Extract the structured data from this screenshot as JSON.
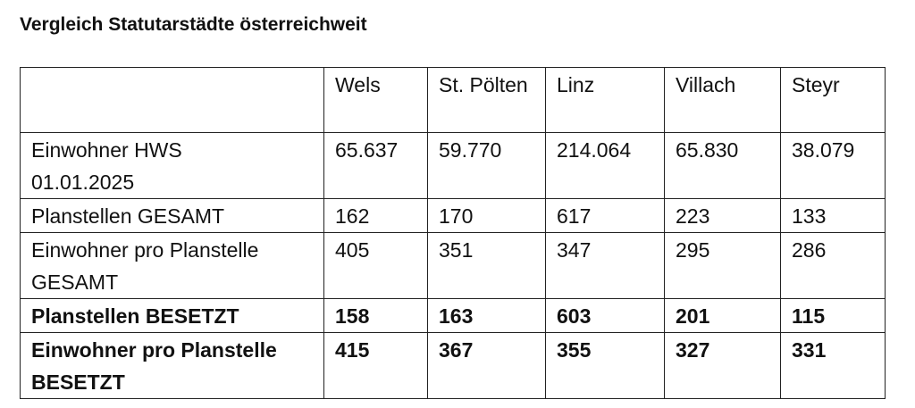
{
  "title": "Vergleich Statutarstädte österreichweit",
  "table": {
    "header": [
      "Wels",
      "St. Pölten",
      "Linz",
      "Villach",
      "Steyr"
    ],
    "rows": [
      {
        "label": "Einwohner HWS\n01.01.2025",
        "values": [
          "65.637",
          "59.770",
          "214.064",
          "65.830",
          "38.079"
        ],
        "bold": false
      },
      {
        "label": "Planstellen GESAMT",
        "values": [
          "162",
          "170",
          "617",
          "223",
          "133"
        ],
        "bold": false
      },
      {
        "label": "Einwohner pro Planstelle\nGESAMT",
        "values": [
          "405",
          "351",
          "347",
          "295",
          "286"
        ],
        "bold": false
      },
      {
        "label": "Planstellen BESETZT",
        "values": [
          "158",
          "163",
          "603",
          "201",
          "115"
        ],
        "bold": true
      },
      {
        "label": "Einwohner pro Planstelle\nBESETZT",
        "values": [
          "415",
          "367",
          "355",
          "327",
          "331"
        ],
        "bold": true
      }
    ]
  }
}
